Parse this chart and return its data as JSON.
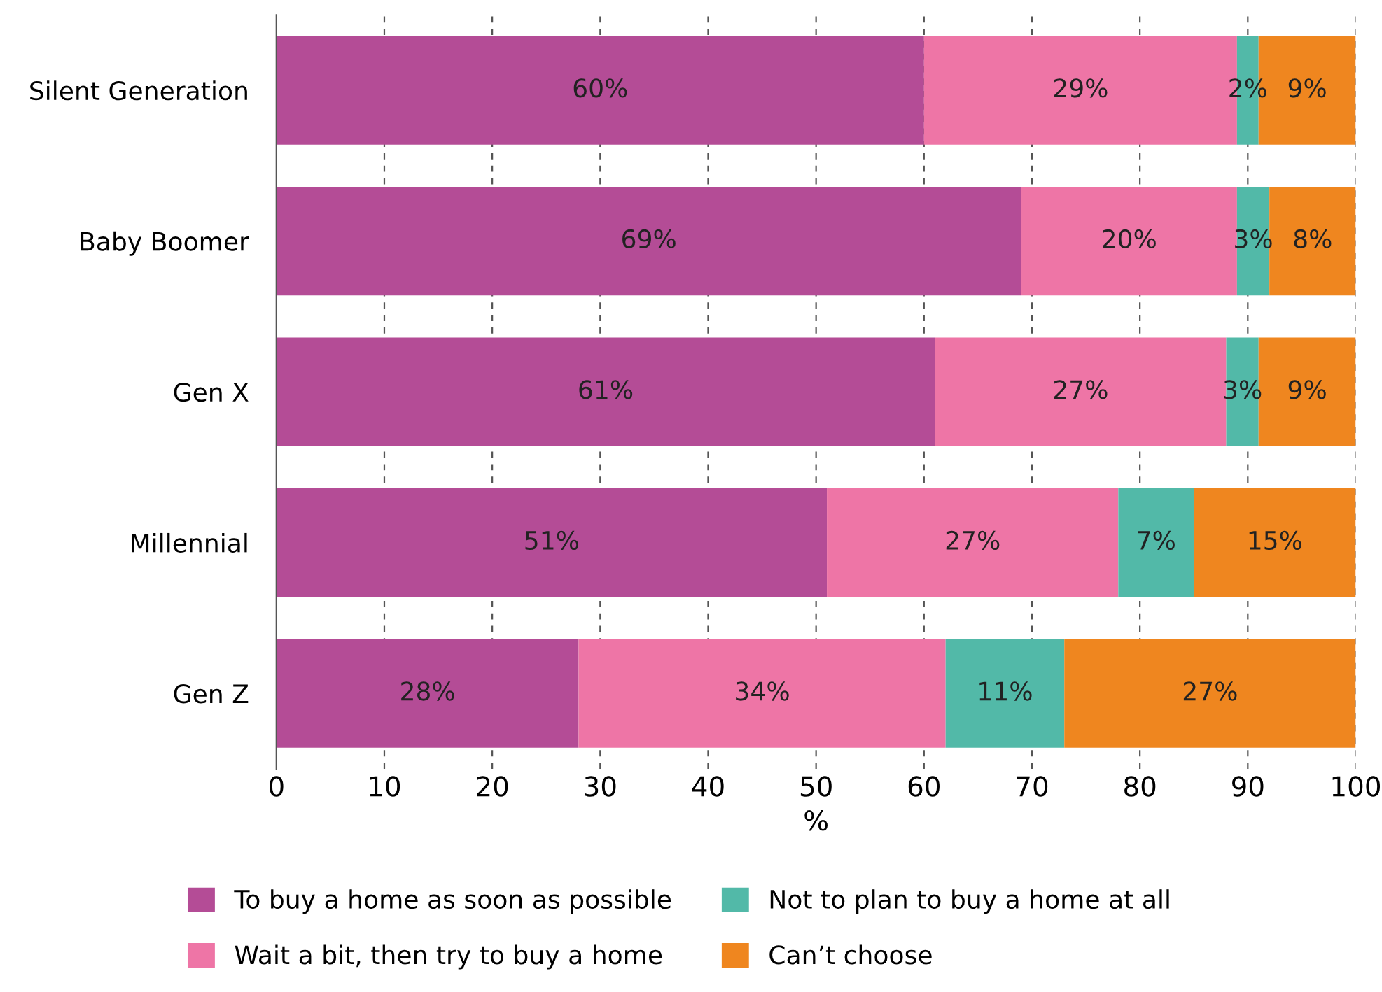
{
  "chart_data": {
    "type": "bar",
    "orientation": "horizontal",
    "stacked": true,
    "xlabel": "%",
    "categories": [
      "Silent Generation",
      "Baby Boomer",
      "Gen X",
      "Millennial",
      "Gen Z"
    ],
    "series": [
      {
        "name": "To buy a home as soon as possible",
        "color": "#b44c96",
        "values": [
          60,
          69,
          61,
          51,
          28
        ],
        "value_labels": [
          "60%",
          "69%",
          "61%",
          "51%",
          "28%"
        ]
      },
      {
        "name": "Wait a bit, then try to buy a home",
        "color": "#ee75a6",
        "values": [
          29,
          20,
          27,
          27,
          34
        ],
        "value_labels": [
          "29%",
          "20%",
          "27%",
          "27%",
          "34%"
        ]
      },
      {
        "name": "Not to plan to buy a home at all",
        "color": "#52b9a8",
        "values": [
          2,
          3,
          3,
          7,
          11
        ],
        "value_labels": [
          "2%",
          "3%",
          "3%",
          "7%",
          "11%"
        ]
      },
      {
        "name": "Can’t choose",
        "color": "#ef861f",
        "values": [
          9,
          8,
          9,
          15,
          27
        ],
        "value_labels": [
          "9%",
          "8%",
          "9%",
          "15%",
          "27%"
        ]
      }
    ],
    "xlim": [
      0,
      100
    ],
    "xticks": [
      0,
      10,
      20,
      30,
      40,
      50,
      60,
      70,
      80,
      90,
      100
    ],
    "grid": "x",
    "legend": "bottom"
  }
}
